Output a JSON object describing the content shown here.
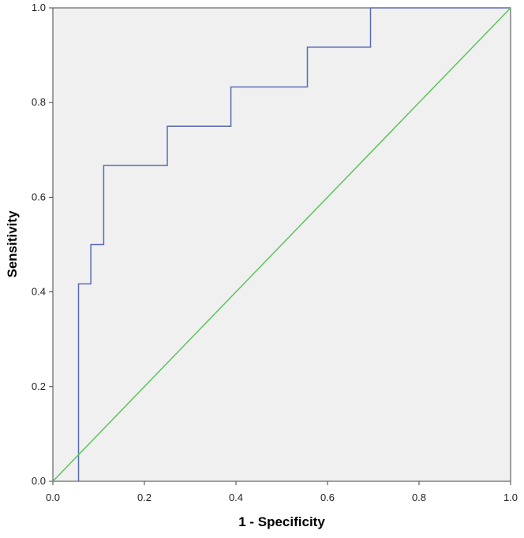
{
  "chart_data": {
    "type": "line",
    "title": "",
    "xlabel": "1 - Specificity",
    "ylabel": "Sensitivity",
    "xlim": [
      0,
      1
    ],
    "ylim": [
      0,
      1
    ],
    "x_ticks": [
      "0.0",
      "0.2",
      "0.4",
      "0.6",
      "0.8",
      "1.0"
    ],
    "y_ticks": [
      "0.0",
      "0.2",
      "0.4",
      "0.6",
      "0.8",
      "1.0"
    ],
    "grid": false,
    "legend": "none",
    "background_color": "#f0f0f0",
    "series": [
      {
        "color": "#5a6bb5",
        "style": "step",
        "points": [
          [
            0.056,
            0.0
          ],
          [
            0.056,
            0.417
          ],
          [
            0.083,
            0.417
          ],
          [
            0.083,
            0.5
          ],
          [
            0.111,
            0.5
          ],
          [
            0.111,
            0.667
          ],
          [
            0.25,
            0.667
          ],
          [
            0.25,
            0.75
          ],
          [
            0.389,
            0.75
          ],
          [
            0.389,
            0.833
          ],
          [
            0.556,
            0.833
          ],
          [
            0.556,
            0.917
          ],
          [
            0.694,
            0.917
          ],
          [
            0.694,
            1.0
          ],
          [
            1.0,
            1.0
          ]
        ]
      },
      {
        "color": "#5cc45c",
        "style": "line",
        "points": [
          [
            0.0,
            0.0
          ],
          [
            1.0,
            1.0
          ]
        ]
      }
    ]
  }
}
